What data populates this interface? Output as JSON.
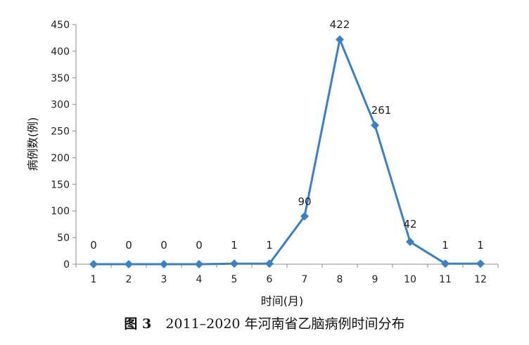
{
  "chart_data": {
    "type": "line",
    "categories": [
      "1",
      "2",
      "3",
      "4",
      "5",
      "6",
      "7",
      "8",
      "9",
      "10",
      "11",
      "12"
    ],
    "series": [
      {
        "values": [
          0,
          0,
          0,
          0,
          1,
          1,
          90,
          422,
          261,
          42,
          1,
          1
        ]
      }
    ],
    "data_labels": [
      "0",
      "0",
      "0",
      "0",
      "1",
      "1",
      "90",
      "422",
      "261",
      "42",
      "1",
      "1"
    ],
    "xlabel": "时间(月)",
    "ylabel": "病例数(例)",
    "ylim": [
      0,
      450
    ],
    "yticks": [
      0,
      50,
      100,
      150,
      200,
      250,
      300,
      350,
      400,
      450
    ],
    "grid": false,
    "legend": "none",
    "marker": "diamond",
    "line_color": "#3b7fc4"
  },
  "caption": {
    "figure_label": "图 3",
    "text": "2011–2020 年河南省乙脑病例时间分布"
  }
}
